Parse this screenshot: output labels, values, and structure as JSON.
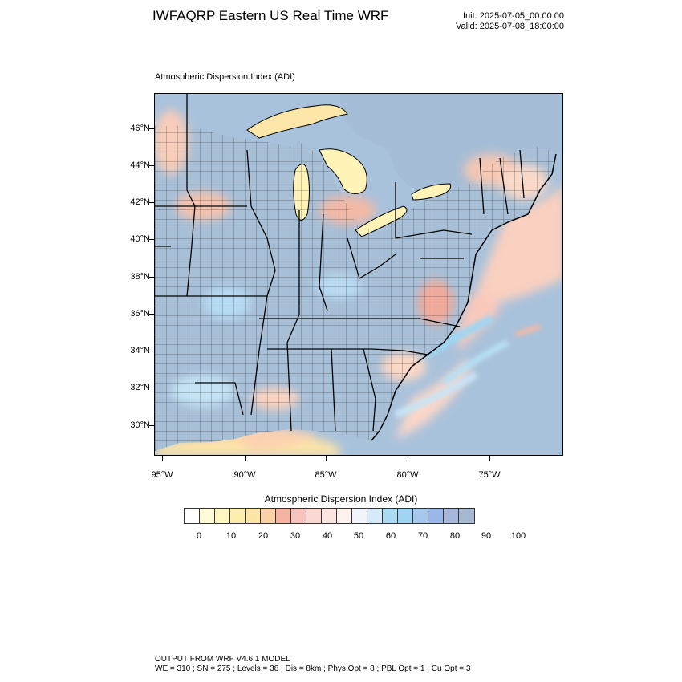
{
  "header": {
    "title": "IWFAQRP Eastern US Real Time WRF",
    "init": "Init: 2025-07-05_00:00:00",
    "valid": "Valid: 2025-07-08_18:00:00"
  },
  "map": {
    "subtitle": "Atmospheric Dispersion Index   (ADI)",
    "lat_labels": [
      "46°N",
      "44°N",
      "42°N",
      "40°N",
      "38°N",
      "36°N",
      "34°N",
      "32°N",
      "30°N"
    ],
    "lon_labels": [
      "95°W",
      "90°W",
      "85°W",
      "80°W",
      "75°W"
    ],
    "colors": {
      "ocean": "#a9c2db",
      "land_base": "#a7bfd7",
      "warm_light": "#fde3d2",
      "warm": "#f7b9a3",
      "yellow": "#fff3b8",
      "cool_light": "#c8e1f3",
      "cyan": "#9fd6f2",
      "boundary": "#000000"
    }
  },
  "colorbar": {
    "title": "Atmospheric Dispersion Index  (ADI)",
    "labels": [
      "0",
      "10",
      "20",
      "30",
      "40",
      "50",
      "60",
      "70",
      "80",
      "90",
      "100"
    ],
    "colors": [
      "#ffffff",
      "#fffbd9",
      "#fff6c2",
      "#ffefac",
      "#fde5a5",
      "#fbd2a6",
      "#f5b3a1",
      "#f6c4bd",
      "#fcd8d3",
      "#fde6e1",
      "#fef2ef",
      "#f2f4fc",
      "#d6ebf9",
      "#a9dcf3",
      "#9fd4f2",
      "#a7c8ee",
      "#9ab7ea",
      "#a7b7dc",
      "#a5b8cf"
    ]
  },
  "footer": {
    "line1": "OUTPUT FROM WRF V4.6.1 MODEL",
    "line2": "WE = 310 ; SN = 275 ; Levels = 38 ; Dis = 8km ; Phys Opt = 8 ; PBL Opt = 1 ; Cu Opt = 3"
  }
}
